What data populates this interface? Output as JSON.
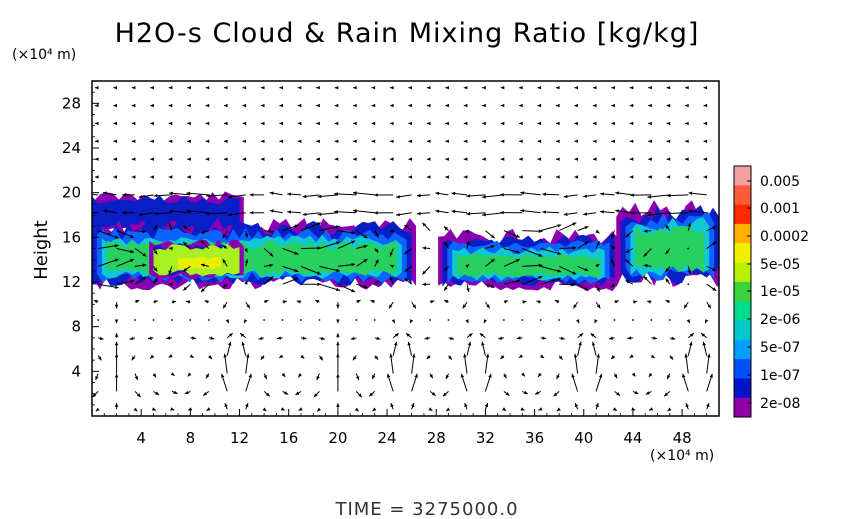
{
  "chart_data": {
    "type": "heatmap",
    "title": "H2O-s Cloud & Rain Mixing Ratio [kg/kg]",
    "ylabel": "Height",
    "y_unit": "(×10⁴ m)",
    "x_unit": "(×10⁴ m)",
    "xlim": [
      0,
      51
    ],
    "ylim": [
      0,
      30
    ],
    "x_ticks": [
      4,
      8,
      12,
      16,
      20,
      24,
      28,
      32,
      36,
      40,
      44,
      48
    ],
    "y_ticks": [
      4,
      8,
      12,
      16,
      20,
      24,
      28
    ],
    "colorbar": {
      "labels": [
        "0.005",
        "0.001",
        "0.0002",
        "5e-05",
        "1e-05",
        "2e-06",
        "5e-07",
        "1e-07",
        "2e-08"
      ],
      "colors": [
        "#f4a0a0",
        "#ff5a3c",
        "#ff2a00",
        "#ffb000",
        "#f0f000",
        "#b4f000",
        "#3cd23c",
        "#00dc8c",
        "#00c8c8",
        "#00a0ff",
        "#0050ff",
        "#0014c8",
        "#9000a8"
      ]
    },
    "cloud_regions": [
      {
        "x_start": 0,
        "x_end": 12,
        "y_bottom": 16.5,
        "y_top": 19.8,
        "level": "1e-07"
      },
      {
        "x_start": 0,
        "x_end": 26,
        "y_bottom": 11.6,
        "y_top": 17.5,
        "level": "1e-05"
      },
      {
        "x_start": 5,
        "x_end": 12,
        "y_bottom": 12.5,
        "y_top": 15.5,
        "level": "5e-05"
      },
      {
        "x_start": 28.5,
        "x_end": 42.5,
        "y_bottom": 11.5,
        "y_top": 16.4,
        "level": "1e-05"
      },
      {
        "x_start": 43,
        "x_end": 51,
        "y_bottom": 11.8,
        "y_top": 19.0,
        "level": "1e-05"
      }
    ],
    "wind_field": {
      "grid_x_spacing": 1.5,
      "grid_y_spacing": 1.6,
      "upper_jet": {
        "y_range": [
          17,
          20
        ],
        "direction": "westward"
      },
      "low_level_cells_x": [
        2,
        12,
        20,
        25,
        31,
        40,
        49
      ]
    },
    "time_label": "TIME = 3275000.0"
  }
}
